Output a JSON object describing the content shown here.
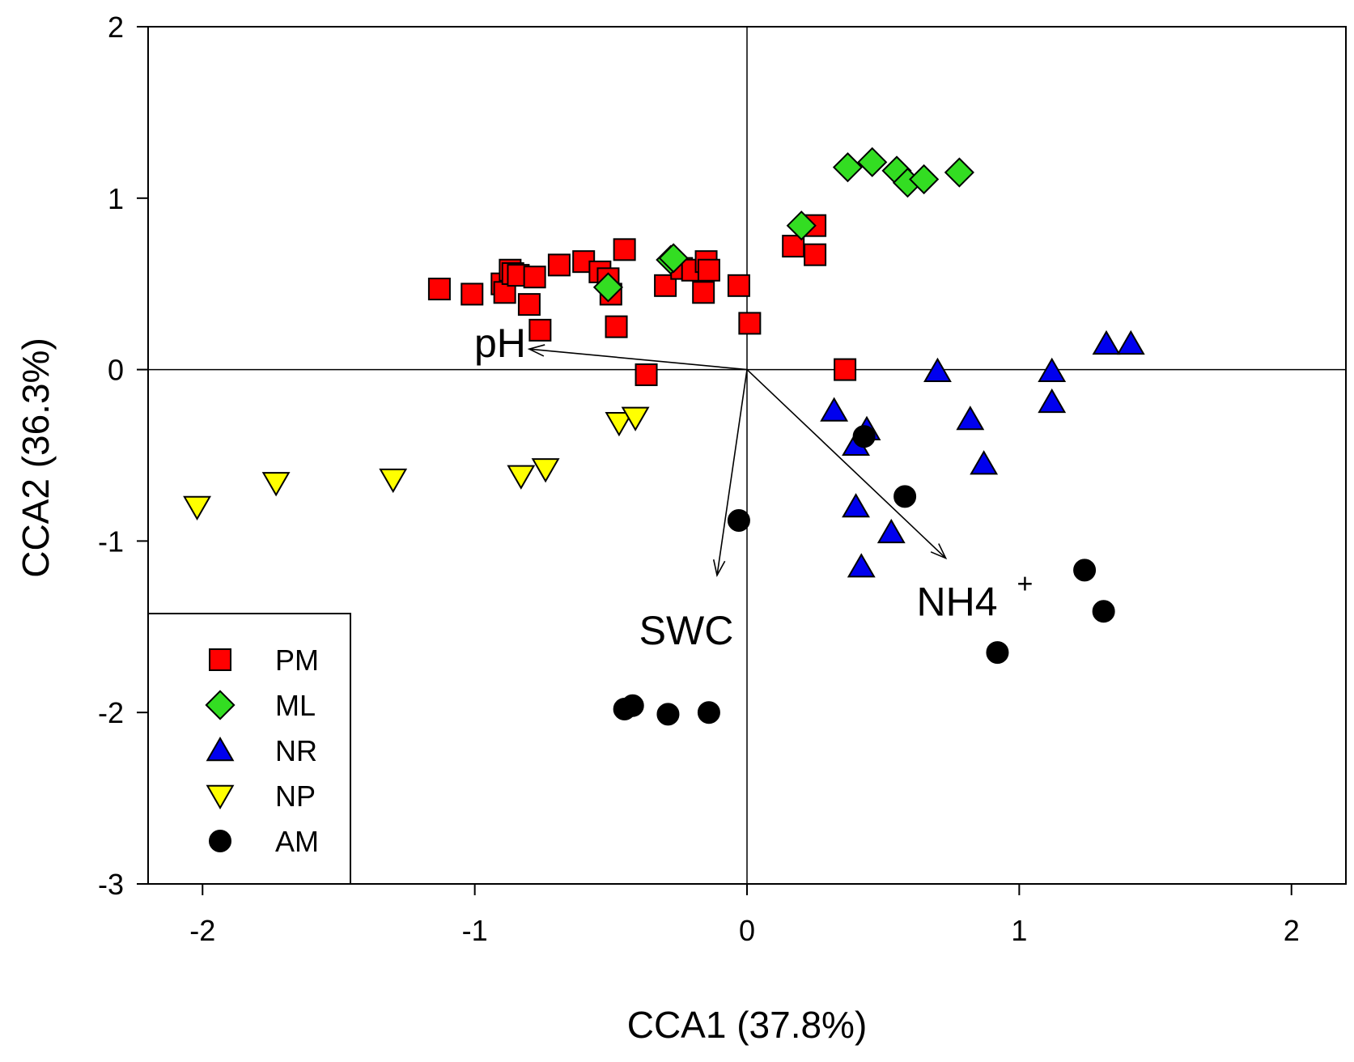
{
  "chart_data": {
    "type": "scatter",
    "title": "",
    "xlabel": "CCA1 (37.8%)",
    "ylabel": "CCA2 (36.3%)",
    "xlim": [
      -2.2,
      2.2
    ],
    "ylim": [
      -3,
      2
    ],
    "x_ticks": [
      -2,
      -1,
      0,
      1,
      2
    ],
    "y_ticks": [
      -3,
      -2,
      -1,
      0,
      1,
      2
    ],
    "x_tick_labels": [
      "-2",
      "-1",
      "0",
      "1",
      "2"
    ],
    "y_tick_labels": [
      "-3",
      "-2",
      "-1",
      "0",
      "1",
      "2"
    ],
    "grid": false,
    "reference_lines": [
      "x=0",
      "y=0"
    ],
    "legend_position": "bottom-left",
    "series": [
      {
        "name": "PM",
        "marker": "square",
        "color": "#ff0000",
        "points": [
          [
            -1.13,
            0.47
          ],
          [
            -1.01,
            0.44
          ],
          [
            -0.9,
            0.5
          ],
          [
            -0.89,
            0.45
          ],
          [
            -0.87,
            0.58
          ],
          [
            -0.86,
            0.56
          ],
          [
            -0.84,
            0.55
          ],
          [
            -0.8,
            0.38
          ],
          [
            -0.78,
            0.54
          ],
          [
            -0.76,
            0.23
          ],
          [
            -0.69,
            0.61
          ],
          [
            -0.6,
            0.63
          ],
          [
            -0.54,
            0.57
          ],
          [
            -0.51,
            0.53
          ],
          [
            -0.5,
            0.44
          ],
          [
            -0.48,
            0.25
          ],
          [
            -0.45,
            0.7
          ],
          [
            -0.37,
            -0.03
          ],
          [
            -0.3,
            0.49
          ],
          [
            -0.24,
            0.59
          ],
          [
            -0.2,
            0.58
          ],
          [
            -0.16,
            0.45
          ],
          [
            -0.15,
            0.63
          ],
          [
            -0.14,
            0.58
          ],
          [
            -0.03,
            0.49
          ],
          [
            0.01,
            0.27
          ],
          [
            0.17,
            0.72
          ],
          [
            0.25,
            0.84
          ],
          [
            0.25,
            0.67
          ],
          [
            0.36,
            0.0
          ]
        ]
      },
      {
        "name": "ML",
        "marker": "diamond",
        "color": "#33dd22",
        "points": [
          [
            -0.51,
            0.48
          ],
          [
            -0.28,
            0.64
          ],
          [
            -0.27,
            0.65
          ],
          [
            0.2,
            0.84
          ],
          [
            0.37,
            1.18
          ],
          [
            0.46,
            1.21
          ],
          [
            0.55,
            1.16
          ],
          [
            0.59,
            1.09
          ],
          [
            0.65,
            1.11
          ],
          [
            0.78,
            1.15
          ]
        ]
      },
      {
        "name": "NR",
        "marker": "triangle-up",
        "color": "#0000ee",
        "points": [
          [
            0.32,
            -0.24
          ],
          [
            0.4,
            -0.44
          ],
          [
            0.4,
            -0.8
          ],
          [
            0.42,
            -1.15
          ],
          [
            0.44,
            -0.35
          ],
          [
            0.53,
            -0.95
          ],
          [
            0.7,
            -0.01
          ],
          [
            0.82,
            -0.29
          ],
          [
            0.87,
            -0.55
          ],
          [
            1.12,
            -0.01
          ],
          [
            1.12,
            -0.19
          ],
          [
            1.32,
            0.15
          ],
          [
            1.41,
            0.15
          ]
        ]
      },
      {
        "name": "NP",
        "marker": "triangle-down",
        "color": "#ffff00",
        "points": [
          [
            -2.02,
            -0.8
          ],
          [
            -1.73,
            -0.66
          ],
          [
            -1.3,
            -0.64
          ],
          [
            -0.83,
            -0.62
          ],
          [
            -0.74,
            -0.58
          ],
          [
            -0.47,
            -0.31
          ],
          [
            -0.41,
            -0.28
          ]
        ]
      },
      {
        "name": "AM",
        "marker": "circle",
        "color": "#000000",
        "points": [
          [
            -0.45,
            -1.98
          ],
          [
            -0.42,
            -1.96
          ],
          [
            -0.29,
            -2.01
          ],
          [
            -0.14,
            -2.0
          ],
          [
            -0.03,
            -0.88
          ],
          [
            0.43,
            -0.39
          ],
          [
            0.58,
            -0.74
          ],
          [
            0.92,
            -1.65
          ],
          [
            1.24,
            -1.17
          ],
          [
            1.31,
            -1.41
          ]
        ]
      }
    ],
    "vectors": [
      {
        "label": "pH",
        "sup": "",
        "x": -0.8,
        "y": 0.12
      },
      {
        "label": "SWC",
        "sup": "",
        "x": -0.11,
        "y": -1.2
      },
      {
        "label": "NH4",
        "sup": "+",
        "x": 0.73,
        "y": -1.1
      }
    ]
  },
  "legend": {
    "items": [
      {
        "label": "PM",
        "marker": "square",
        "color": "#ff0000"
      },
      {
        "label": "ML",
        "marker": "diamond",
        "color": "#33dd22"
      },
      {
        "label": "NR",
        "marker": "triangle-up",
        "color": "#0000ee"
      },
      {
        "label": "NP",
        "marker": "triangle-down",
        "color": "#ffff00"
      },
      {
        "label": "AM",
        "marker": "circle",
        "color": "#000000"
      }
    ]
  }
}
